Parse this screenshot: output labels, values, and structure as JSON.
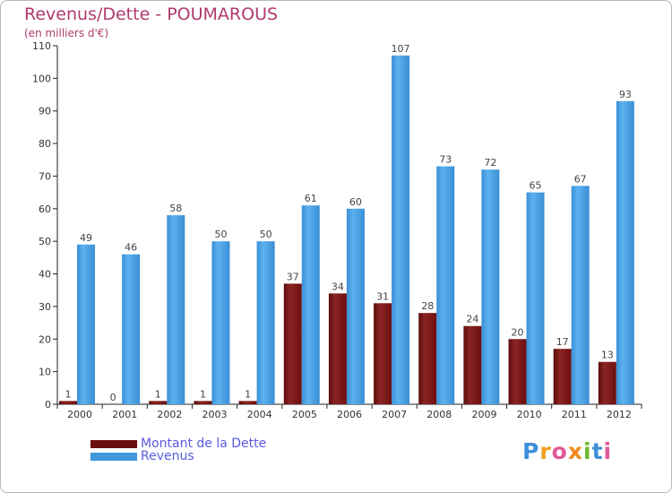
{
  "title": "Revenus/Dette - POUMAROUS",
  "subtitle": "(en milliers d'€)",
  "colors": {
    "dette": "#6b0f0f",
    "revenus": "#3f97dc",
    "title": "#b03a6e",
    "legend_text": "#5a5adf"
  },
  "logo": {
    "text": "Proxiti"
  },
  "chart_data": {
    "type": "bar",
    "title": "Revenus/Dette - POUMAROUS",
    "subtitle": "(en milliers d'€)",
    "categories": [
      "2000",
      "2001",
      "2002",
      "2003",
      "2004",
      "2005",
      "2006",
      "2007",
      "2008",
      "2009",
      "2010",
      "2011",
      "2012"
    ],
    "series": [
      {
        "name": "Montant de la Dette",
        "values": [
          1,
          0,
          1,
          1,
          1,
          37,
          34,
          31,
          28,
          24,
          20,
          17,
          13
        ],
        "color": "#6b0f0f"
      },
      {
        "name": "Revenus",
        "values": [
          49,
          46,
          58,
          50,
          50,
          61,
          60,
          107,
          73,
          72,
          65,
          67,
          93
        ],
        "color": "#3f97dc"
      }
    ],
    "yticks": [
      0,
      10,
      20,
      30,
      40,
      50,
      60,
      70,
      80,
      90,
      100,
      110
    ],
    "ylim": [
      0,
      110
    ],
    "grid": false,
    "legend_position": "bottom-left"
  }
}
